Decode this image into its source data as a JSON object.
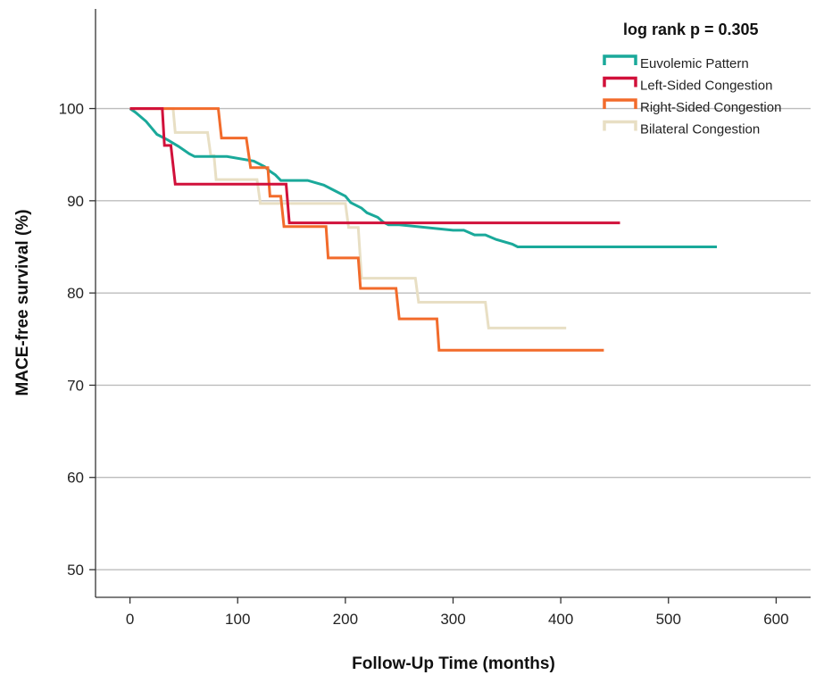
{
  "chart_data": {
    "type": "line",
    "step": true,
    "xlabel": "Follow-Up Time (months)",
    "ylabel": "MACE-free survival (%)",
    "annotation": "log rank p = 0.305",
    "xlim": [
      -32,
      632
    ],
    "ylim": [
      47,
      110.8
    ],
    "xticks": [
      0,
      100,
      200,
      300,
      400,
      500,
      600
    ],
    "yticks": [
      50,
      60,
      70,
      80,
      90,
      100
    ],
    "grid": "horizontal",
    "legend_position": "top-right",
    "series": [
      {
        "name": "Euvolemic Pattern",
        "color": "#1aa99a",
        "points": [
          [
            0,
            100
          ],
          [
            5,
            99.6
          ],
          [
            10,
            99.1
          ],
          [
            15,
            98.6
          ],
          [
            20,
            97.9
          ],
          [
            25,
            97.2
          ],
          [
            35,
            96.6
          ],
          [
            45,
            95.9
          ],
          [
            55,
            95.1
          ],
          [
            60,
            94.8
          ],
          [
            90,
            94.8
          ],
          [
            115,
            94.3
          ],
          [
            125,
            93.7
          ],
          [
            130,
            93.2
          ],
          [
            135,
            92.8
          ],
          [
            140,
            92.2
          ],
          [
            165,
            92.2
          ],
          [
            180,
            91.7
          ],
          [
            190,
            91.1
          ],
          [
            200,
            90.5
          ],
          [
            205,
            89.8
          ],
          [
            215,
            89.2
          ],
          [
            220,
            88.7
          ],
          [
            230,
            88.2
          ],
          [
            235,
            87.7
          ],
          [
            240,
            87.4
          ],
          [
            250,
            87.4
          ],
          [
            300,
            86.8
          ],
          [
            310,
            86.8
          ],
          [
            320,
            86.3
          ],
          [
            330,
            86.3
          ],
          [
            340,
            85.8
          ],
          [
            355,
            85.3
          ],
          [
            360,
            85.0
          ],
          [
            545,
            85.0
          ]
        ]
      },
      {
        "name": "Left-Sided Congestion",
        "color": "#d1103a",
        "points": [
          [
            0,
            100
          ],
          [
            30,
            100
          ],
          [
            32,
            96.0
          ],
          [
            38,
            96.0
          ],
          [
            42,
            91.8
          ],
          [
            145,
            91.8
          ],
          [
            148,
            87.6
          ],
          [
            455,
            87.6
          ]
        ]
      },
      {
        "name": "Right-Sided Congestion",
        "color": "#f26b2b",
        "points": [
          [
            0,
            100
          ],
          [
            82,
            100
          ],
          [
            85,
            96.8
          ],
          [
            108,
            96.8
          ],
          [
            112,
            93.6
          ],
          [
            128,
            93.6
          ],
          [
            130,
            90.5
          ],
          [
            140,
            90.5
          ],
          [
            143,
            87.2
          ],
          [
            182,
            87.2
          ],
          [
            184,
            83.8
          ],
          [
            212,
            83.8
          ],
          [
            214,
            80.5
          ],
          [
            247,
            80.5
          ],
          [
            250,
            77.2
          ],
          [
            285,
            77.2
          ],
          [
            287,
            73.8
          ],
          [
            440,
            73.8
          ]
        ]
      },
      {
        "name": "Bilateral Congestion",
        "color": "#e8dfc4",
        "points": [
          [
            0,
            100
          ],
          [
            40,
            100
          ],
          [
            42,
            97.4
          ],
          [
            72,
            97.4
          ],
          [
            75,
            94.9
          ],
          [
            78,
            94.9
          ],
          [
            80,
            92.3
          ],
          [
            118,
            92.3
          ],
          [
            121,
            89.7
          ],
          [
            200,
            89.7
          ],
          [
            203,
            87.1
          ],
          [
            212,
            87.1
          ],
          [
            215,
            81.6
          ],
          [
            265,
            81.6
          ],
          [
            268,
            79.0
          ],
          [
            330,
            79.0
          ],
          [
            333,
            76.2
          ],
          [
            405,
            76.2
          ]
        ]
      }
    ]
  }
}
